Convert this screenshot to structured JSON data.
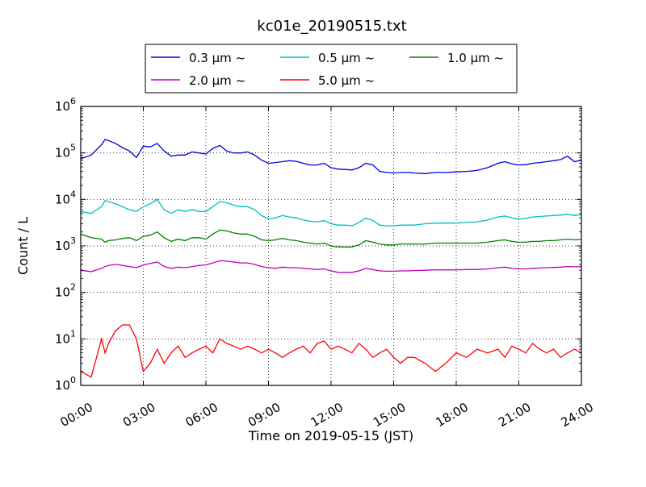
{
  "chart_data": {
    "type": "line",
    "title": "kc01e_20190515.txt",
    "xlabel": "Time on 2019-05-15 (JST)",
    "ylabel": "Count / L",
    "yscale": "log",
    "xlim": [
      "00:00",
      "24:00"
    ],
    "ylim": [
      1,
      1000000
    ],
    "grid": true,
    "legend_position": "top-center",
    "x_ticks": [
      "00:00",
      "03:00",
      "06:00",
      "09:00",
      "12:00",
      "15:00",
      "18:00",
      "21:00",
      "24:00"
    ],
    "y_ticks": [
      {
        "value": 1,
        "base": "10",
        "exp": "0"
      },
      {
        "value": 10,
        "base": "10",
        "exp": "1"
      },
      {
        "value": 100,
        "base": "10",
        "exp": "2"
      },
      {
        "value": 1000,
        "base": "10",
        "exp": "3"
      },
      {
        "value": 10000,
        "base": "10",
        "exp": "4"
      },
      {
        "value": 100000,
        "base": "10",
        "exp": "5"
      },
      {
        "value": 1000000,
        "base": "10",
        "exp": "6"
      }
    ],
    "x": [
      "00:00",
      "00:30",
      "01:00",
      "01:10",
      "01:20",
      "01:40",
      "02:00",
      "02:20",
      "02:40",
      "03:00",
      "03:20",
      "03:40",
      "04:00",
      "04:20",
      "04:40",
      "05:00",
      "05:20",
      "05:40",
      "06:00",
      "06:20",
      "06:40",
      "07:00",
      "07:20",
      "07:40",
      "08:00",
      "08:20",
      "08:40",
      "09:00",
      "09:20",
      "09:40",
      "10:00",
      "10:20",
      "10:40",
      "11:00",
      "11:20",
      "11:40",
      "12:00",
      "12:20",
      "12:40",
      "13:00",
      "13:20",
      "13:40",
      "14:00",
      "14:20",
      "14:40",
      "15:00",
      "15:20",
      "15:40",
      "16:00",
      "16:30",
      "17:00",
      "17:30",
      "18:00",
      "18:30",
      "19:00",
      "19:30",
      "20:00",
      "20:20",
      "20:40",
      "21:00",
      "21:20",
      "21:40",
      "22:00",
      "22:20",
      "22:40",
      "23:00",
      "23:20",
      "23:40",
      "24:00"
    ],
    "series": [
      {
        "name": "0.3 µm ~",
        "color": "#0000dd",
        "values": [
          75000,
          90000,
          150000,
          195000,
          185000,
          160000,
          130000,
          110000,
          80000,
          140000,
          135000,
          160000,
          110000,
          85000,
          90000,
          90000,
          105000,
          100000,
          95000,
          125000,
          145000,
          110000,
          100000,
          100000,
          105000,
          90000,
          70000,
          60000,
          62000,
          65000,
          68000,
          66000,
          60000,
          55000,
          55000,
          60000,
          48000,
          45000,
          44000,
          43000,
          48000,
          60000,
          55000,
          40000,
          38000,
          37000,
          38000,
          38000,
          37000,
          36000,
          38000,
          38000,
          39000,
          40000,
          42000,
          48000,
          60000,
          65000,
          58000,
          55000,
          56000,
          60000,
          62000,
          65000,
          68000,
          72000,
          85000,
          65000,
          70000
        ]
      },
      {
        "name": "0.5 µm ~",
        "color": "#00bfbf",
        "values": [
          5500,
          5000,
          7000,
          9500,
          9000,
          8000,
          7000,
          6000,
          5500,
          7000,
          8000,
          10000,
          6000,
          5000,
          6000,
          5500,
          6000,
          5500,
          5500,
          7000,
          9000,
          8500,
          7500,
          7000,
          7000,
          6000,
          4500,
          3800,
          4000,
          4500,
          4200,
          4000,
          3600,
          3400,
          3300,
          3500,
          3000,
          2800,
          2800,
          2700,
          3200,
          4000,
          3500,
          2800,
          2700,
          2700,
          2800,
          2800,
          2800,
          3000,
          3100,
          3100,
          3100,
          3200,
          3300,
          3600,
          4200,
          4400,
          4000,
          3800,
          3900,
          4200,
          4300,
          4400,
          4500,
          4600,
          4800,
          4500,
          4700
        ]
      },
      {
        "name": "1.0 µm ~",
        "color": "#008000",
        "values": [
          1800,
          1500,
          1400,
          1200,
          1300,
          1350,
          1450,
          1500,
          1300,
          1600,
          1700,
          2000,
          1500,
          1250,
          1400,
          1300,
          1500,
          1500,
          1400,
          1800,
          2200,
          2100,
          1900,
          1800,
          1800,
          1600,
          1350,
          1300,
          1350,
          1450,
          1350,
          1300,
          1200,
          1150,
          1100,
          1150,
          1000,
          950,
          950,
          950,
          1050,
          1300,
          1200,
          1100,
          1050,
          1050,
          1100,
          1100,
          1100,
          1100,
          1150,
          1150,
          1150,
          1150,
          1150,
          1200,
          1300,
          1350,
          1250,
          1200,
          1200,
          1250,
          1250,
          1300,
          1300,
          1350,
          1400,
          1350,
          1400
        ]
      },
      {
        "name": "2.0 µm ~",
        "color": "#bf00bf",
        "values": [
          300,
          280,
          330,
          360,
          380,
          400,
          380,
          360,
          340,
          390,
          420,
          450,
          360,
          330,
          350,
          340,
          360,
          380,
          390,
          430,
          480,
          470,
          450,
          430,
          430,
          400,
          360,
          340,
          330,
          350,
          340,
          340,
          330,
          320,
          310,
          320,
          290,
          270,
          270,
          270,
          290,
          330,
          310,
          290,
          285,
          285,
          290,
          290,
          295,
          300,
          305,
          305,
          305,
          310,
          310,
          320,
          340,
          350,
          330,
          320,
          320,
          330,
          335,
          340,
          345,
          350,
          360,
          355,
          360
        ]
      },
      {
        "name": "5.0 µm ~",
        "color": "#ff0000",
        "values": [
          2,
          1.5,
          10,
          5,
          8,
          15,
          20,
          20,
          10,
          2,
          3,
          6,
          3,
          5,
          7,
          4,
          5,
          6,
          7,
          5,
          10,
          8,
          7,
          6,
          7,
          6,
          5,
          6,
          5,
          4,
          5,
          6,
          7,
          5,
          8,
          9,
          6,
          7,
          6,
          5,
          8,
          6,
          4,
          5,
          6,
          4,
          3,
          4,
          4,
          3,
          2,
          3,
          5,
          4,
          6,
          5,
          6,
          4,
          7,
          6,
          5,
          8,
          6,
          5,
          6,
          4,
          5,
          6,
          5
        ]
      }
    ]
  }
}
